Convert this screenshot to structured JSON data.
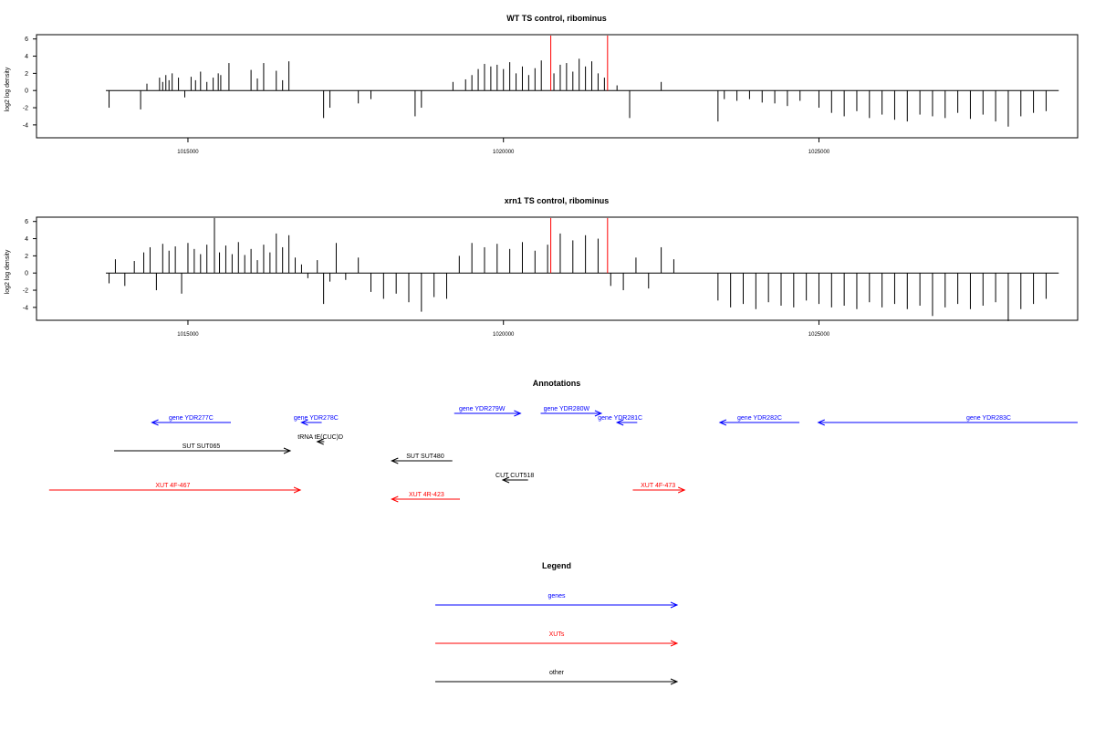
{
  "chart_data": [
    {
      "type": "bar",
      "title": "WT TS control, ribominus",
      "ylabel": "log2 log density",
      "xlabel": "",
      "xlim": [
        1012600,
        1029100
      ],
      "ylim": [
        -5.5,
        6.5
      ],
      "yticks": [
        6,
        4,
        2,
        0,
        -2,
        -4
      ],
      "xticks": [
        1015000,
        1020000,
        1025000
      ],
      "xtick_labels": [
        "1015000",
        "1020000",
        "1025000"
      ],
      "grid": false,
      "baseline": {
        "x": [
          1013700,
          1028800
        ],
        "y": 0
      },
      "series": [
        {
          "color": "#000000",
          "x": [
            1013750,
            1014250,
            1014350,
            1014550,
            1014600,
            1014650,
            1014700,
            1014750,
            1014850,
            1014950,
            1015050,
            1015120,
            1015200,
            1015300,
            1015400,
            1015480,
            1015520,
            1015650,
            1016000,
            1016100,
            1016200,
            1016400,
            1016500,
            1016600,
            1017150,
            1017250,
            1017700,
            1017900,
            1018600,
            1018700,
            1019200,
            1019400,
            1019500,
            1019600,
            1019700,
            1019800,
            1019900,
            1020000,
            1020100,
            1020200,
            1020300,
            1020400,
            1020500,
            1020600,
            1020800,
            1020900,
            1021000,
            1021100,
            1021200,
            1021300,
            1021400,
            1021500,
            1021600,
            1021800,
            1022000,
            1022500,
            1023400,
            1023500,
            1023700,
            1023900,
            1024100,
            1024300,
            1024500,
            1024700,
            1025000,
            1025200,
            1025400,
            1025600,
            1025800,
            1026000,
            1026200,
            1026400,
            1026600,
            1026800,
            1027000,
            1027200,
            1027400,
            1027600,
            1027800,
            1028000,
            1028200,
            1028400,
            1028600
          ],
          "values": [
            -2.0,
            -2.2,
            0.8,
            1.5,
            1.0,
            1.8,
            1.2,
            2.0,
            1.5,
            -0.8,
            1.6,
            1.2,
            2.2,
            1.0,
            1.5,
            2.0,
            1.8,
            3.2,
            2.4,
            1.4,
            3.2,
            2.3,
            1.2,
            3.4,
            -3.2,
            -2.0,
            -1.5,
            -1.0,
            -3.0,
            -2.0,
            1.0,
            1.3,
            1.8,
            2.5,
            3.1,
            2.8,
            3.0,
            2.5,
            3.3,
            2.0,
            2.8,
            1.8,
            2.6,
            3.5,
            2.0,
            3.0,
            3.2,
            2.2,
            3.7,
            2.8,
            3.4,
            2.0,
            1.5,
            0.6,
            -3.2,
            1.0,
            -3.6,
            -1.0,
            -1.2,
            -1.0,
            -1.4,
            -1.5,
            -1.8,
            -1.2,
            -2.0,
            -2.6,
            -3.0,
            -2.4,
            -3.2,
            -2.8,
            -3.4,
            -3.6,
            -2.8,
            -3.0,
            -3.2,
            -2.6,
            -3.3,
            -2.8,
            -3.6,
            -4.2,
            -3.0,
            -2.6,
            -2.4
          ]
        },
        {
          "color": "#ff0000",
          "x": [
            1020750,
            1021650
          ],
          "values": [
            6.4,
            6.4
          ]
        }
      ]
    },
    {
      "type": "bar",
      "title": "xrn1 TS control, ribominus",
      "ylabel": "log2 log density",
      "xlabel": "",
      "xlim": [
        1012600,
        1029100
      ],
      "ylim": [
        -5.5,
        6.5
      ],
      "yticks": [
        6,
        4,
        2,
        0,
        -2,
        -4
      ],
      "xticks": [
        1015000,
        1020000,
        1025000
      ],
      "xtick_labels": [
        "1015000",
        "1020000",
        "1025000"
      ],
      "grid": false,
      "baseline": {
        "x": [
          1013700,
          1028800
        ],
        "y": 0
      },
      "series": [
        {
          "color": "#000000",
          "x": [
            1013750,
            1013850,
            1014000,
            1014150,
            1014300,
            1014400,
            1014500,
            1014600,
            1014700,
            1014800,
            1014900,
            1015000,
            1015100,
            1015200,
            1015300,
            1015420,
            1015500,
            1015600,
            1015700,
            1015800,
            1015900,
            1016000,
            1016100,
            1016200,
            1016300,
            1016400,
            1016500,
            1016600,
            1016700,
            1016800,
            1016900,
            1017050,
            1017150,
            1017250,
            1017350,
            1017500,
            1017700,
            1017900,
            1018100,
            1018300,
            1018500,
            1018700,
            1018900,
            1019100,
            1019300,
            1019500,
            1019700,
            1019900,
            1020100,
            1020300,
            1020500,
            1020700,
            1020900,
            1021100,
            1021300,
            1021500,
            1021700,
            1021900,
            1022100,
            1022300,
            1022500,
            1022700,
            1023400,
            1023600,
            1023800,
            1024000,
            1024200,
            1024400,
            1024600,
            1024800,
            1025000,
            1025200,
            1025400,
            1025600,
            1025800,
            1026000,
            1026200,
            1026400,
            1026600,
            1026800,
            1027000,
            1027200,
            1027400,
            1027600,
            1027800,
            1028000,
            1028200,
            1028400,
            1028600
          ],
          "values": [
            -1.2,
            1.6,
            -1.5,
            1.4,
            2.4,
            3.0,
            -2.0,
            3.4,
            2.6,
            3.1,
            -2.4,
            3.5,
            2.8,
            2.2,
            3.3,
            6.4,
            2.4,
            3.2,
            2.2,
            3.6,
            2.1,
            2.8,
            1.5,
            3.3,
            2.4,
            4.6,
            3.0,
            4.4,
            1.8,
            1.0,
            -0.6,
            1.5,
            -3.6,
            -1.0,
            3.5,
            -0.8,
            1.8,
            -2.2,
            -3.0,
            -2.4,
            -3.4,
            -4.5,
            -2.8,
            -3.0,
            2.0,
            3.5,
            3.0,
            3.4,
            2.8,
            3.6,
            2.6,
            3.3,
            4.6,
            3.8,
            4.4,
            4.0,
            -1.5,
            -2.0,
            1.8,
            -1.8,
            3.0,
            1.6,
            -3.2,
            -4.0,
            -3.6,
            -4.2,
            -3.4,
            -3.8,
            -4.0,
            -3.2,
            -3.6,
            -4.0,
            -3.8,
            -4.2,
            -3.4,
            -4.0,
            -3.6,
            -4.2,
            -3.8,
            -5.0,
            -4.0,
            -3.6,
            -4.2,
            -3.8,
            -3.4,
            -5.6,
            -4.2,
            -3.6,
            -3.0
          ]
        },
        {
          "color": "#ff0000",
          "x": [
            1020750,
            1021650
          ],
          "values": [
            6.4,
            6.4
          ]
        }
      ]
    }
  ],
  "annotations": {
    "title": "Annotations",
    "items": [
      {
        "label": "gene YDR277C",
        "color": "#0000ff",
        "start": 1014430,
        "end": 1015680,
        "label_pos": 1015050,
        "row": 0,
        "dir": "left"
      },
      {
        "label": "gene YDR278C",
        "color": "#0000ff",
        "start": 1016800,
        "end": 1017120,
        "label_pos": 1017030,
        "row": 0,
        "dir": "left"
      },
      {
        "label": "gene YDR279W",
        "color": "#0000ff",
        "start": 1019220,
        "end": 1020270,
        "label_pos": 1019660,
        "row": -1,
        "dir": "right"
      },
      {
        "label": "gene YDR280W",
        "color": "#0000ff",
        "start": 1020590,
        "end": 1021550,
        "label_pos": 1021000,
        "row": -1,
        "dir": "right"
      },
      {
        "label": "gene YDR281C",
        "color": "#0000ff",
        "start": 1021800,
        "end": 1022120,
        "label_pos": 1021850,
        "row": 0,
        "dir": "left"
      },
      {
        "label": "gene YDR282C",
        "color": "#0000ff",
        "start": 1023430,
        "end": 1024690,
        "label_pos": 1024060,
        "row": 0,
        "dir": "left"
      },
      {
        "label": "gene YDR283C",
        "color": "#0000ff",
        "start": 1024990,
        "end": 1029100,
        "label_pos": 1027690,
        "row": 0,
        "dir": "left"
      },
      {
        "label": "tRNA tE(CUC)D",
        "color": "#000000",
        "start": 1017050,
        "end": 1017160,
        "label_pos": 1017100,
        "row": 1,
        "dir": "left"
      },
      {
        "label": "SUT SUT065",
        "color": "#000000",
        "start": 1013830,
        "end": 1016620,
        "label_pos": 1015210,
        "row": 2,
        "dir": "right"
      },
      {
        "label": "SUT SUT480",
        "color": "#000000",
        "start": 1018230,
        "end": 1019190,
        "label_pos": 1018760,
        "row": 3,
        "dir": "left"
      },
      {
        "label": "CUT CUT518",
        "color": "#000000",
        "start": 1019990,
        "end": 1020390,
        "label_pos": 1020180,
        "row": 4,
        "dir": "left"
      },
      {
        "label": "XUT 4F-467",
        "color": "#ff0000",
        "start": 1012800,
        "end": 1016780,
        "label_pos": 1014760,
        "row": 5,
        "dir": "right"
      },
      {
        "label": "XUT 4R-423",
        "color": "#ff0000",
        "start": 1018230,
        "end": 1019310,
        "label_pos": 1018780,
        "row": 6,
        "dir": "left"
      },
      {
        "label": "XUT 4F-473",
        "color": "#ff0000",
        "start": 1022050,
        "end": 1022870,
        "label_pos": 1022450,
        "row": 5,
        "dir": "right"
      }
    ]
  },
  "legend": {
    "title": "Legend",
    "items": [
      {
        "label": "genes",
        "color": "#0000ff"
      },
      {
        "label": "XUTs",
        "color": "#ff0000"
      },
      {
        "label": "other",
        "color": "#000000"
      }
    ]
  }
}
